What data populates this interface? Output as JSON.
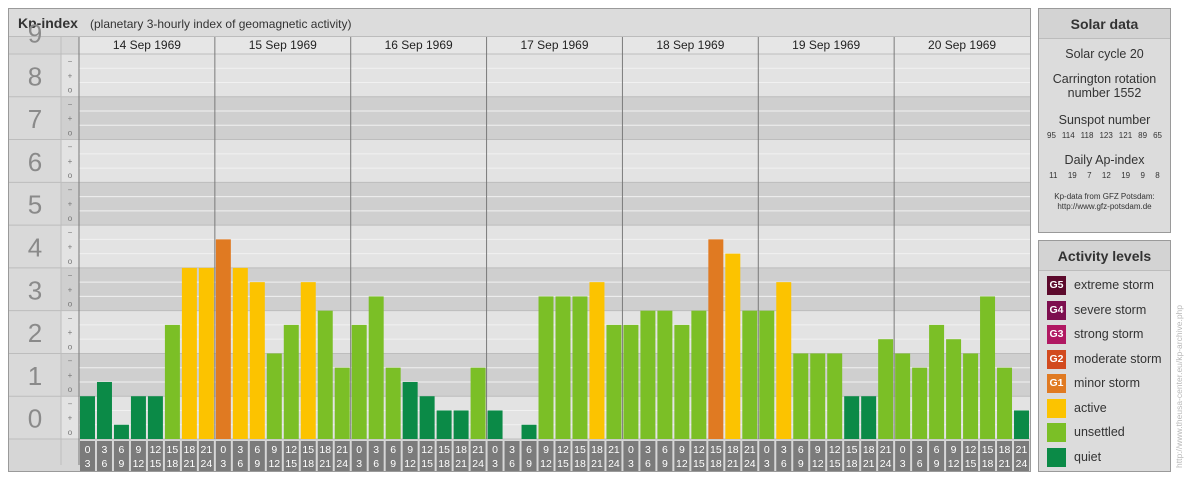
{
  "chart_header": {
    "title": "Kp-index",
    "subtitle": "(planetary 3-hourly index of geomagnetic activity)"
  },
  "solar_data": {
    "heading": "Solar data",
    "solar_cycle": "Solar cycle 20",
    "carrington_line1": "Carrington rotation",
    "carrington_line2": "number 1552",
    "sunspot_label": "Sunspot number",
    "sunspot_values": [
      "95",
      "114",
      "118",
      "123",
      "121",
      "89",
      "65"
    ],
    "ap_label": "Daily Ap-index",
    "ap_values": [
      "11",
      "19",
      "7",
      "12",
      "19",
      "9",
      "8"
    ],
    "credit_line1": "Kp-data from GFZ Potsdam:",
    "credit_line2": "http://www.gfz-potsdam.de"
  },
  "activity_levels": {
    "heading": "Activity levels",
    "items": [
      {
        "badge": "G5",
        "label": "extreme storm",
        "color": "#5c0a2c"
      },
      {
        "badge": "G4",
        "label": "severe storm",
        "color": "#7d0f4f"
      },
      {
        "badge": "G3",
        "label": "strong storm",
        "color": "#b01862"
      },
      {
        "badge": "G2",
        "label": "moderate storm",
        "color": "#d24a1e"
      },
      {
        "badge": "G1",
        "label": "minor storm",
        "color": "#e07a22"
      },
      {
        "badge": "",
        "label": "active",
        "color": "#fcc300"
      },
      {
        "badge": "",
        "label": "unsettled",
        "color": "#7bbf26"
      },
      {
        "badge": "",
        "label": "quiet",
        "color": "#0b8a47"
      }
    ]
  },
  "watermark": "http://www.theusa-center.eu/kp-archive.php",
  "chart_data": {
    "type": "bar",
    "title": "Kp-index",
    "subtitle": "(planetary 3-hourly index of geomagnetic activity)",
    "ylim": [
      0,
      9
    ],
    "y_ticks": [
      "0",
      "1",
      "2",
      "3",
      "4",
      "5",
      "6",
      "7",
      "8",
      "9"
    ],
    "y_minor_marks": [
      "o",
      "+",
      "−"
    ],
    "days": [
      "14 Sep 1969",
      "15 Sep 1969",
      "16 Sep 1969",
      "17 Sep 1969",
      "18 Sep 1969",
      "19 Sep 1969",
      "20 Sep 1969"
    ],
    "interval_start": [
      "0",
      "3",
      "6",
      "9",
      "12",
      "15",
      "18",
      "21"
    ],
    "interval_end": [
      "3",
      "6",
      "9",
      "12",
      "15",
      "18",
      "21",
      "24"
    ],
    "values": [
      1.0,
      1.333,
      0.333,
      1.0,
      1.0,
      2.667,
      4.0,
      4.0,
      4.667,
      4.0,
      3.667,
      2.0,
      2.667,
      3.667,
      3.0,
      1.667,
      2.667,
      3.333,
      1.667,
      1.333,
      1.0,
      0.667,
      0.667,
      1.667,
      0.667,
      0.0,
      0.333,
      3.333,
      3.333,
      3.333,
      3.667,
      2.667,
      2.667,
      3.0,
      3.0,
      2.667,
      3.0,
      4.667,
      4.333,
      3.0,
      3.0,
      3.667,
      2.0,
      2.0,
      2.0,
      1.0,
      1.0,
      2.333,
      2.0,
      1.667,
      2.667,
      2.333,
      2.0,
      3.333,
      1.667,
      0.667
    ],
    "bar_colors": [
      "#0b8a47",
      "#0b8a47",
      "#0b8a47",
      "#0b8a47",
      "#0b8a47",
      "#7bbf26",
      "#fcc300",
      "#fcc300",
      "#e07a22",
      "#fcc300",
      "#fcc300",
      "#7bbf26",
      "#7bbf26",
      "#fcc300",
      "#7bbf26",
      "#7bbf26",
      "#7bbf26",
      "#7bbf26",
      "#7bbf26",
      "#0b8a47",
      "#0b8a47",
      "#0b8a47",
      "#0b8a47",
      "#7bbf26",
      "#0b8a47",
      "#0b8a47",
      "#0b8a47",
      "#7bbf26",
      "#7bbf26",
      "#7bbf26",
      "#fcc300",
      "#7bbf26",
      "#7bbf26",
      "#7bbf26",
      "#7bbf26",
      "#7bbf26",
      "#7bbf26",
      "#e07a22",
      "#fcc300",
      "#7bbf26",
      "#7bbf26",
      "#fcc300",
      "#7bbf26",
      "#7bbf26",
      "#7bbf26",
      "#0b8a47",
      "#0b8a47",
      "#7bbf26",
      "#7bbf26",
      "#7bbf26",
      "#7bbf26",
      "#7bbf26",
      "#7bbf26",
      "#7bbf26",
      "#7bbf26",
      "#0b8a47"
    ],
    "grid": true
  }
}
